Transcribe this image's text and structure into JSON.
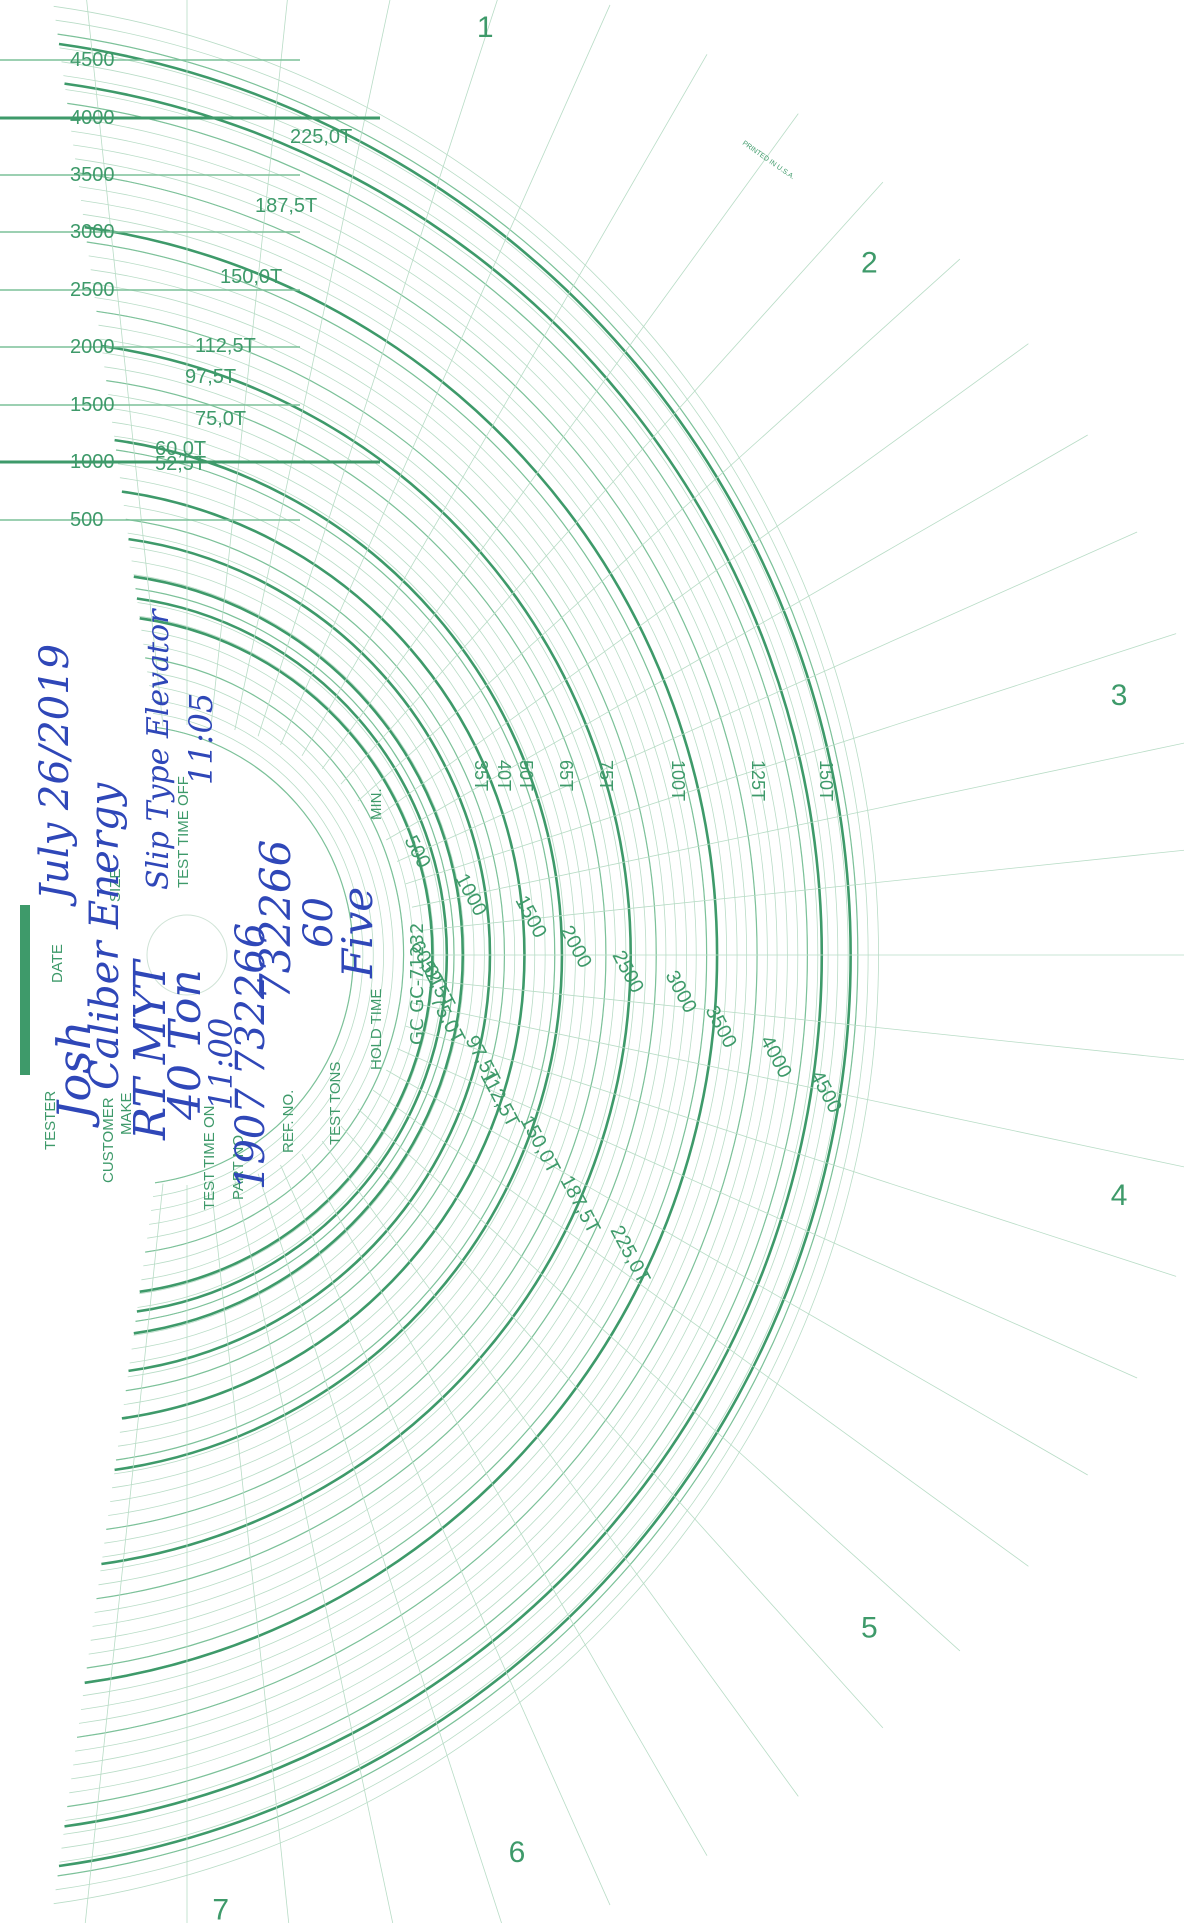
{
  "chart_info": {
    "model": "GC GC-71232",
    "printed": "PRINTED IN U.S.A."
  },
  "spokes": [
    "1",
    "2",
    "3",
    "4",
    "5",
    "6",
    "7"
  ],
  "scales": {
    "psi": [
      "500",
      "1000",
      "1500",
      "2000",
      "2500",
      "3000",
      "3500",
      "4000",
      "4500"
    ],
    "top_tons": [
      "52,5T",
      "60,0T",
      "75,0T",
      "97,5T",
      "112,5T",
      "150,0T",
      "187,5T",
      "225,0T"
    ],
    "bottom_tons": [
      "52,5T",
      "60,0T",
      "75,0T",
      "97,5T",
      "112,5T",
      "150,0T",
      "187,5T",
      "225,0T"
    ],
    "inner_tons": [
      "35T",
      "40T",
      "50T",
      "65T",
      "75T",
      "100T",
      "125T",
      "150T"
    ]
  },
  "form_labels": {
    "tester": "TESTER",
    "date": "DATE",
    "customer": "CUSTOMER",
    "make": "MAKE",
    "size": "SIZE",
    "test_time_on": "TEST   TIME   ON",
    "test_time_off": "TEST   TIME   OFF",
    "part_no": "PART NO.",
    "ref_no": "REF. NO.",
    "test_tons": "TEST TONS",
    "hold_time": "HOLD TIME",
    "min": "MIN."
  },
  "handwritten": {
    "tester": "Josh",
    "date": "July 26/2019",
    "customer": "Caliber Energy",
    "make": "RT MYT",
    "size": "40 Ton",
    "size_extra": "Slip Type Elevator",
    "time_on": "11:00",
    "time_off": "11:05",
    "part_no": "1907 732266",
    "ref_no": "732266",
    "test_tons": "60",
    "hold_time": "Five"
  },
  "colors": {
    "chart_green": "#3e9a6a",
    "grid_green": "#b8dcc6",
    "ink_blue": "#2f47b8"
  }
}
